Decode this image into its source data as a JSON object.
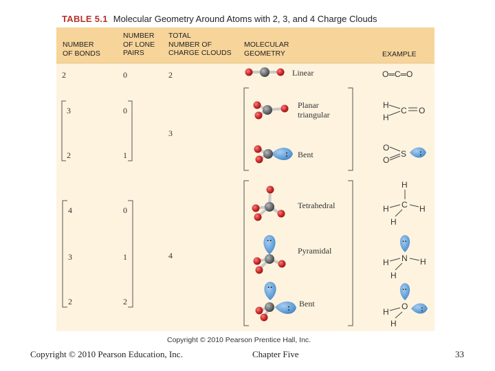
{
  "table": {
    "number": "TABLE 5.1",
    "title": "Molecular Geometry Around Atoms with 2, 3, and 4 Charge Clouds",
    "headers": {
      "bonds": [
        "NUMBER",
        "OF BONDS"
      ],
      "lone_pairs": [
        "NUMBER",
        "OF LONE",
        "PAIRS"
      ],
      "clouds": [
        "TOTAL",
        "NUMBER OF",
        "CHARGE CLOUDS"
      ],
      "geometry": [
        "MOLECULAR",
        "GEOMETRY"
      ],
      "example": [
        "EXAMPLE"
      ]
    },
    "rows": [
      {
        "bonds": "2",
        "lone_pairs": "0",
        "geometry": "Linear"
      },
      {
        "bonds": "3",
        "lone_pairs": "0",
        "geometry_lines": [
          "Planar",
          "triangular"
        ]
      },
      {
        "bonds": "2",
        "lone_pairs": "1",
        "geometry": "Bent"
      },
      {
        "bonds": "4",
        "lone_pairs": "0",
        "geometry": "Tetrahedral"
      },
      {
        "bonds": "3",
        "lone_pairs": "1",
        "geometry": "Pyramidal"
      },
      {
        "bonds": "2",
        "lone_pairs": "2",
        "geometry": "Bent"
      }
    ],
    "cloud_totals": {
      "two": "2",
      "three": "3",
      "four": "4"
    },
    "examples": {
      "co2": "O═C═O",
      "h": "H",
      "c": "C",
      "o": "O",
      "s": "S",
      "n": "N",
      "lone_pair": ":"
    },
    "image_copyright": "Copyright © 2010 Pearson Prentice Hall, Inc."
  },
  "footer": {
    "copyright": "Copyright © 2010 Pearson Education, Inc.",
    "chapter": "Chapter Five",
    "page": "33"
  },
  "colors": {
    "panel": "#fdf3df",
    "header": "#f6d49a",
    "atom_red": "#d02a2a",
    "atom_gray": "#6d6f73",
    "lobe_blue": "#5b9bd5"
  }
}
